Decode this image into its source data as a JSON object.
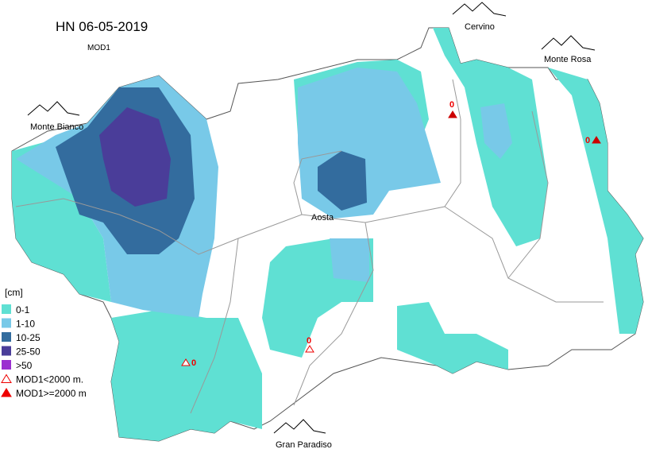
{
  "title": "HN 06-05-2019",
  "subtitle": "MOD1",
  "places": [
    "Monte Bianco",
    "Cervino",
    "Monte Rosa",
    "Aosta",
    "Gran Paradiso"
  ],
  "legend": {
    "unit": "[cm]",
    "classes": [
      {
        "label": "0-1",
        "color": "#5fe0d3"
      },
      {
        "label": "1-10",
        "color": "#78c9e8"
      },
      {
        "label": "10-25",
        "color": "#336c9e"
      },
      {
        "label": "25-50",
        "color": "#4a3d99"
      },
      {
        "label": ">50",
        "color": "#9b30d0"
      }
    ],
    "symbols": [
      {
        "label": "MOD1<2000 m.",
        "filled": false
      },
      {
        "label": "MOD1>=2000 m",
        "filled": true
      }
    ]
  },
  "stations": [
    {
      "value": 0,
      "filled": true
    },
    {
      "value": 0,
      "filled": true
    },
    {
      "value": 0,
      "filled": false
    },
    {
      "value": 0,
      "filled": false
    }
  ]
}
